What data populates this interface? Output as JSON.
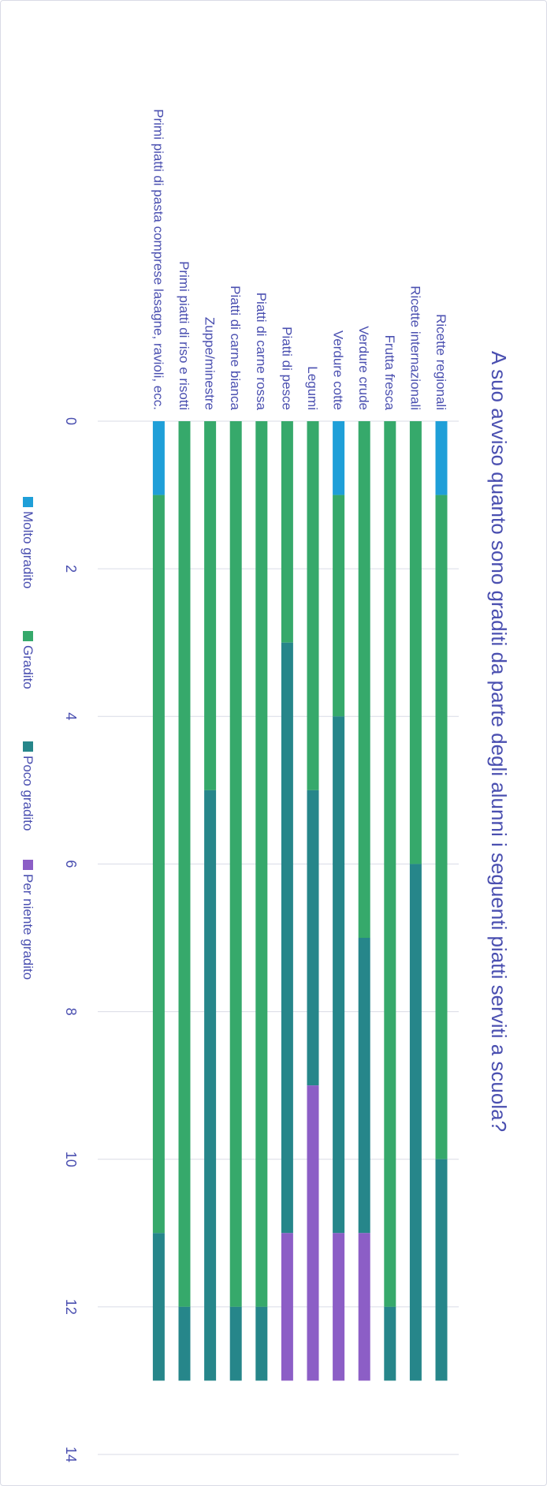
{
  "chart_data": {
    "type": "bar",
    "orientation": "horizontal",
    "stacked": true,
    "title": "A suo avviso quanto sono graditi da parte degli alunni i seguenti piatti serviti a scuola?",
    "categories": [
      "Ricette regionali",
      "Ricette internazionali",
      "Frutta fresca",
      "Verdure crude",
      "Verdure cotte",
      "Legumi",
      "Piatti di pesce",
      "Piatti di carne rossa",
      "Piatti di carne bianca",
      "Zuppe/minestre",
      "Primi piatti di riso e risotti",
      "Primi piatti di pasta comprese lasagne, ravioli, ecc."
    ],
    "series": [
      {
        "name": "Molto gradito",
        "color": "#1f9fd8",
        "values": [
          1,
          0,
          0,
          0,
          1,
          0,
          0,
          0,
          0,
          0,
          0,
          1
        ]
      },
      {
        "name": "Gradito",
        "color": "#36a96b",
        "values": [
          9,
          6,
          12,
          7,
          3,
          5,
          3,
          12,
          12,
          5,
          12,
          10
        ]
      },
      {
        "name": "Poco gradito",
        "color": "#26868a",
        "values": [
          3,
          7,
          1,
          4,
          7,
          4,
          8,
          1,
          1,
          8,
          1,
          2
        ]
      },
      {
        "name": "Per niente gradito",
        "color": "#8c5ec6",
        "values": [
          0,
          0,
          0,
          2,
          2,
          4,
          2,
          0,
          0,
          0,
          0,
          0
        ]
      }
    ],
    "xlim": [
      0,
      14
    ],
    "ticks": [
      0,
      2,
      4,
      6,
      8,
      10,
      12,
      14
    ],
    "grid": true,
    "legend": "bottom",
    "text_color": "#4a4fb0",
    "grid_color": "#d9dbe6"
  }
}
